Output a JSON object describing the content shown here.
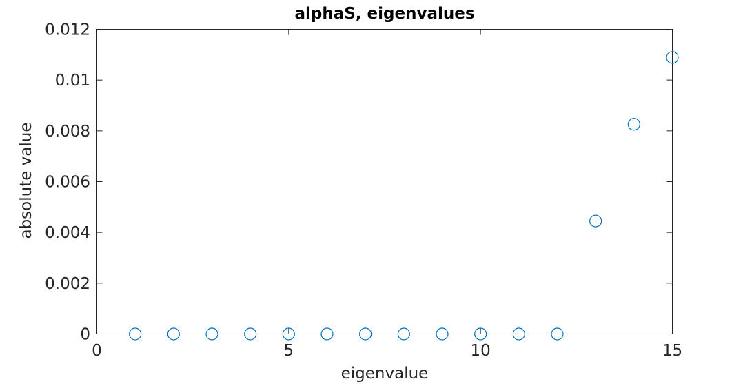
{
  "chart_data": {
    "type": "scatter",
    "title": "alphaS, eigenvalues",
    "xlabel": "eigenvalue",
    "ylabel": "absolute value",
    "xlim": [
      0,
      15
    ],
    "ylim": [
      0,
      0.012
    ],
    "xticks": [
      0,
      5,
      10,
      15
    ],
    "xtick_labels": [
      "0",
      "5",
      "10",
      "15"
    ],
    "yticks": [
      0,
      0.002,
      0.004,
      0.006,
      0.008,
      0.01,
      0.012
    ],
    "ytick_labels": [
      "0",
      "0.002",
      "0.004",
      "0.006",
      "0.008",
      "0.01",
      "0.012"
    ],
    "marker": "open-circle",
    "marker_color": "#0072BD",
    "axis_color": "#262626",
    "grid": false,
    "series": [
      {
        "x": [
          1,
          2,
          3,
          4,
          5,
          6,
          7,
          8,
          9,
          10,
          11,
          12,
          13,
          14,
          15
        ],
        "y": [
          0,
          0,
          0,
          0,
          0,
          0,
          0,
          0,
          0,
          0,
          0,
          0,
          0.00445,
          0.00826,
          0.01089
        ]
      }
    ]
  }
}
